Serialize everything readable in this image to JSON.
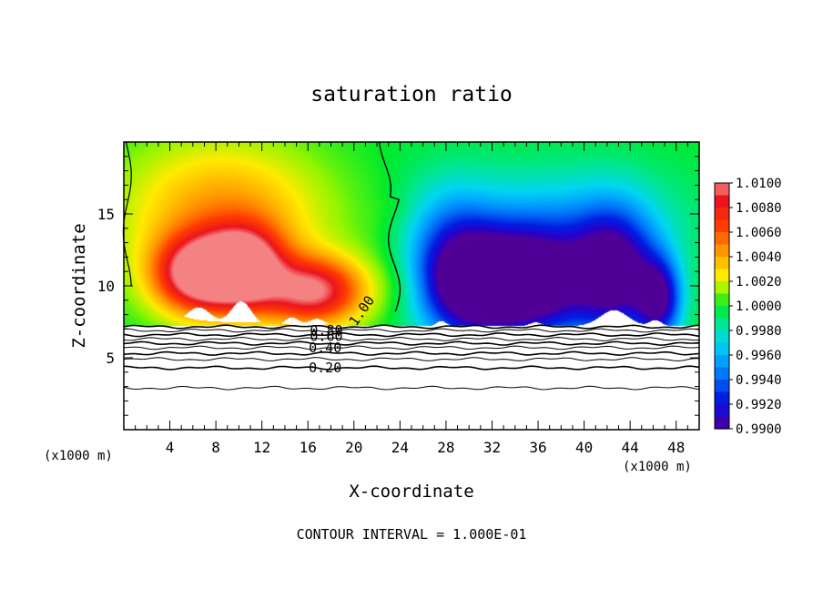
{
  "chart_data": {
    "type": "heatmap",
    "title": "saturation ratio",
    "xlabel": "X-coordinate",
    "ylabel": "Z-coordinate",
    "x_unit_left": "(x1000 m)",
    "x_unit_right": "(x1000 m)",
    "footer": "CONTOUR INTERVAL = 1.000E-01",
    "xlim": [
      0,
      50
    ],
    "ylim": [
      0,
      20
    ],
    "x_ticks": [
      4,
      8,
      12,
      16,
      20,
      24,
      28,
      32,
      36,
      40,
      44,
      48
    ],
    "y_ticks": [
      5,
      10,
      15
    ],
    "colorbar": {
      "min": 0.99,
      "max": 1.01,
      "step": 0.001,
      "labels": [
        "1.0100",
        "1.0080",
        "1.0060",
        "1.0040",
        "1.0020",
        "1.0000",
        "0.9980",
        "0.9960",
        "0.9940",
        "0.9920",
        "0.9900"
      ],
      "colors": [
        "#f19a9a",
        "#ee2a2a",
        "#ff6a00",
        "#ff9900",
        "#ffd700",
        "#d5ff00",
        "#00e01a",
        "#00d0b0",
        "#00b0ff",
        "#0050e8",
        "#5000a0"
      ]
    },
    "contour_labels": [
      {
        "text": "1.00",
        "x": 21.0,
        "y": 8.4
      },
      {
        "text": "0.80",
        "x": 17.6,
        "y": 6.9
      },
      {
        "text": "0.60",
        "x": 17.6,
        "y": 6.5
      },
      {
        "text": "0.40",
        "x": 17.5,
        "y": 5.7
      },
      {
        "text": "0.20",
        "x": 17.5,
        "y": 4.3
      }
    ],
    "ground_top": 7.2,
    "terrain_contours": [
      7.15,
      6.9,
      6.6,
      6.3,
      6.0,
      5.7,
      5.3,
      4.9,
      4.3,
      2.9
    ],
    "moist_cells": [
      {
        "x": 6.5,
        "z": 10.8,
        "amp": 1.0,
        "sx": 2.6,
        "sz": 1.8
      },
      {
        "x": 10.5,
        "z": 11.2,
        "amp": 1.0,
        "sx": 2.3,
        "sz": 1.9
      },
      {
        "x": 16.5,
        "z": 9.6,
        "amp": 0.9,
        "sx": 3.0,
        "sz": 1.6
      },
      {
        "x": 9.0,
        "z": 13.5,
        "amp": 0.35,
        "sx": 6.0,
        "sz": 3.5
      },
      {
        "x": 8.0,
        "z": 17.0,
        "amp": 0.15,
        "sx": 6.0,
        "sz": 3.0
      }
    ],
    "dry_cells": [
      {
        "x": 31.0,
        "z": 10.0,
        "amp": 0.9,
        "sx": 3.0,
        "sz": 2.6
      },
      {
        "x": 36.0,
        "z": 10.2,
        "amp": 0.95,
        "sx": 3.0,
        "sz": 2.8
      },
      {
        "x": 42.5,
        "z": 10.8,
        "amp": 1.0,
        "sx": 2.6,
        "sz": 3.0
      },
      {
        "x": 46.5,
        "z": 9.0,
        "amp": 0.8,
        "sx": 1.4,
        "sz": 2.0
      },
      {
        "x": 28.5,
        "z": 11.5,
        "amp": 0.5,
        "sx": 2.8,
        "sz": 3.5
      },
      {
        "x": 38.0,
        "z": 14.5,
        "amp": 0.25,
        "sx": 8.0,
        "sz": 3.0
      }
    ]
  }
}
